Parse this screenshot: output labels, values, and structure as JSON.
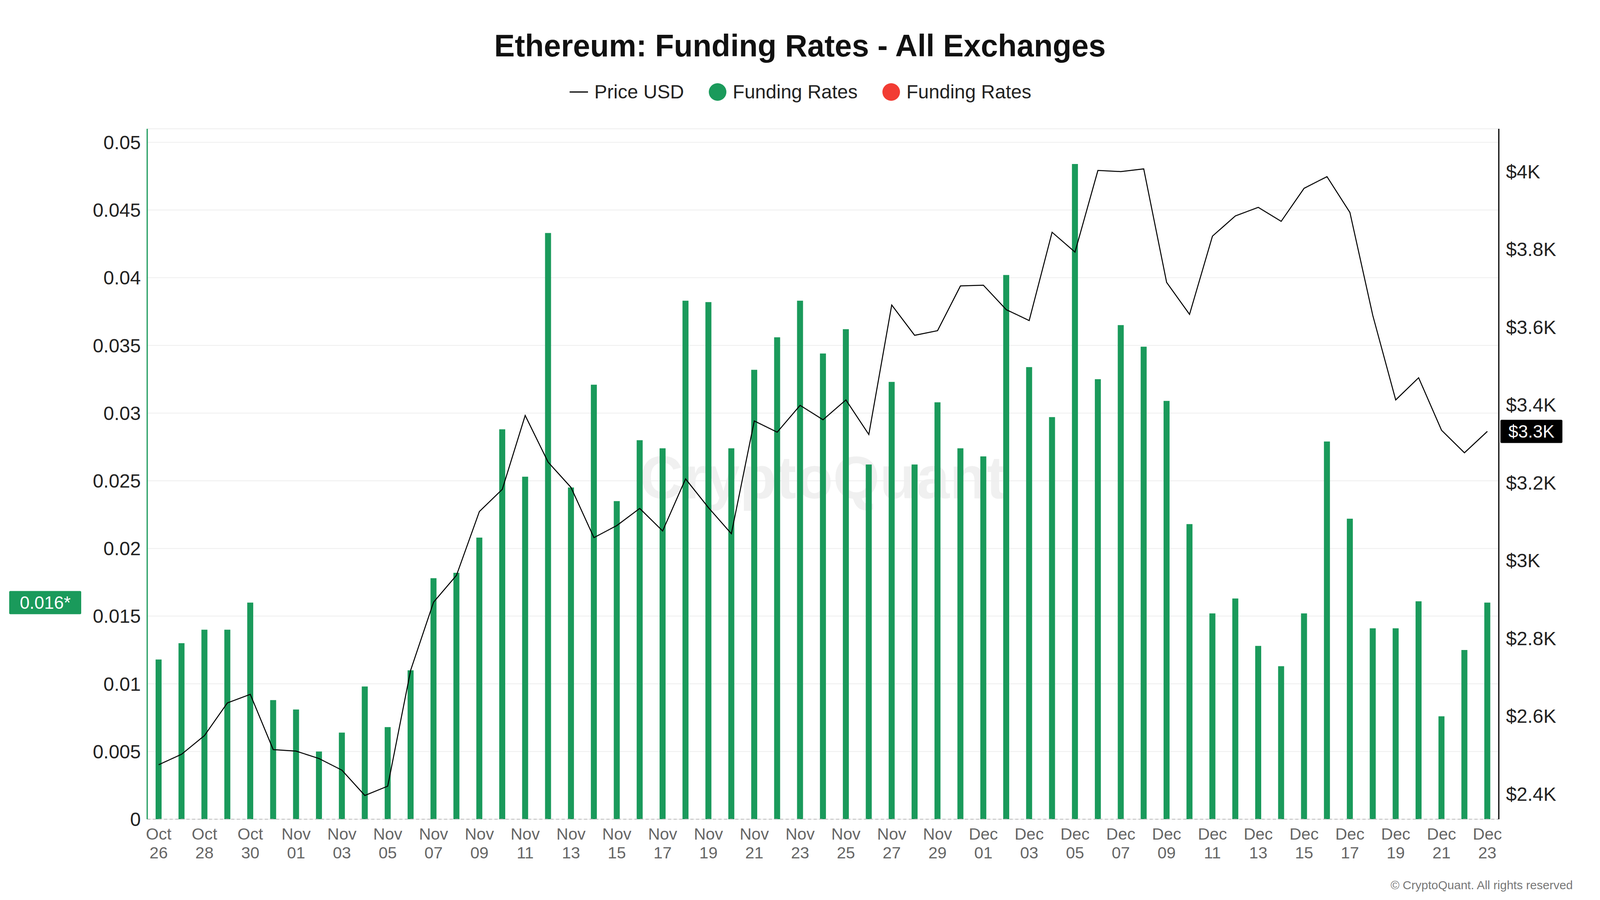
{
  "chart_data": {
    "type": "bar",
    "title": "Ethereum: Funding Rates - All Exchanges",
    "categories": [
      "Oct 26",
      null,
      "Oct 28",
      null,
      "Oct 30",
      null,
      "Nov 01",
      null,
      "Nov 03",
      null,
      "Nov 05",
      null,
      "Nov 07",
      null,
      "Nov 09",
      null,
      "Nov 11",
      null,
      "Nov 13",
      null,
      "Nov 15",
      null,
      "Nov 17",
      null,
      "Nov 19",
      null,
      "Nov 21",
      null,
      "Nov 23",
      null,
      "Nov 25",
      null,
      "Nov 27",
      null,
      "Nov 29",
      null,
      "Dec 01",
      null,
      "Dec 03",
      null,
      "Dec 05",
      null,
      "Dec 07",
      null,
      "Dec 09",
      null,
      "Dec 11",
      null,
      "Dec 13",
      null,
      "Dec 15",
      null,
      "Dec 17",
      null,
      "Dec 19",
      null,
      "Dec 21",
      null,
      "Dec 23"
    ],
    "series": [
      {
        "name": "Price USD",
        "type": "line",
        "color": "#000000",
        "axis": "y2",
        "values": [
          2475,
          2502,
          2550,
          2634,
          2656,
          2514,
          2510,
          2491,
          2461,
          2396,
          2420,
          2718,
          2893,
          2962,
          3126,
          3183,
          3373,
          3253,
          3188,
          3059,
          3090,
          3134,
          3076,
          3210,
          3136,
          3069,
          3359,
          3330,
          3399,
          3362,
          3413,
          3324,
          3657,
          3579,
          3591,
          3706,
          3708,
          3645,
          3617,
          3844,
          3793,
          4003,
          4000,
          4007,
          3715,
          3633,
          3834,
          3886,
          3908,
          3872,
          3957,
          3987,
          3895,
          3630,
          3413,
          3470,
          3335,
          3277,
          3332
        ]
      },
      {
        "name": "Funding Rates",
        "type": "bar",
        "color": "#1a9a5b",
        "values": [
          0.0118,
          0.013,
          0.014,
          0.014,
          0.016,
          0.0088,
          0.0081,
          0.005,
          0.0064,
          0.0098,
          0.0068,
          0.011,
          0.0178,
          0.0182,
          0.0208,
          0.0288,
          0.0253,
          0.0433,
          0.0245,
          0.0321,
          0.0235,
          0.028,
          0.0274,
          0.0383,
          0.0382,
          0.0274,
          0.0332,
          0.0356,
          0.0383,
          0.0344,
          0.0362,
          0.0262,
          0.0323,
          0.0262,
          0.0308,
          0.0274,
          0.0268,
          0.0402,
          0.0334,
          0.0297,
          0.0484,
          0.0325,
          0.0365,
          0.0349,
          0.0309,
          0.0218,
          0.0152,
          0.0163,
          0.0128,
          0.0113,
          0.0152,
          0.0279,
          0.0222,
          0.0141,
          0.0141,
          0.0161,
          0.0076,
          0.0125,
          0.016
        ]
      },
      {
        "name": "Funding Rates",
        "type": "bar",
        "color": "#f23c33",
        "values": [
          null,
          null,
          null,
          null,
          null,
          null,
          null,
          null,
          null,
          null,
          null,
          null,
          null,
          null,
          null,
          null,
          null,
          null,
          null,
          null,
          null,
          null,
          null,
          null,
          null,
          null,
          null,
          null,
          null,
          null,
          null,
          null,
          null,
          null,
          null,
          null,
          null,
          null,
          null,
          null,
          null,
          null,
          null,
          null,
          null,
          null,
          null,
          null,
          null,
          null,
          null,
          null,
          null,
          null,
          null,
          null,
          null,
          null,
          null
        ]
      }
    ],
    "ylim": [
      0,
      0.051
    ],
    "yticks": [
      0,
      0.005,
      0.01,
      0.015,
      0.02,
      0.025,
      0.03,
      0.035,
      0.04,
      0.045,
      0.05
    ],
    "y2lim": [
      2335,
      4110
    ],
    "y2ticks": [
      {
        "value": 2400,
        "label": "$2.4K"
      },
      {
        "value": 2600,
        "label": "$2.6K"
      },
      {
        "value": 2800,
        "label": "$2.8K"
      },
      {
        "value": 3000,
        "label": "$3K"
      },
      {
        "value": 3200,
        "label": "$3.2K"
      },
      {
        "value": 3400,
        "label": "$3.4K"
      },
      {
        "value": 3600,
        "label": "$3.6K"
      },
      {
        "value": 3800,
        "label": "$3.8K"
      },
      {
        "value": 4000,
        "label": "$4K"
      }
    ],
    "grid": true,
    "legend": "top",
    "annotations": [
      {
        "text": "0.016*",
        "value": 0.016,
        "axis": "y"
      },
      {
        "text": "$3.3K",
        "value": 3332,
        "axis": "y2"
      }
    ],
    "watermark": "CryptoQuant",
    "source": "© CryptoQuant. All rights reserved"
  }
}
